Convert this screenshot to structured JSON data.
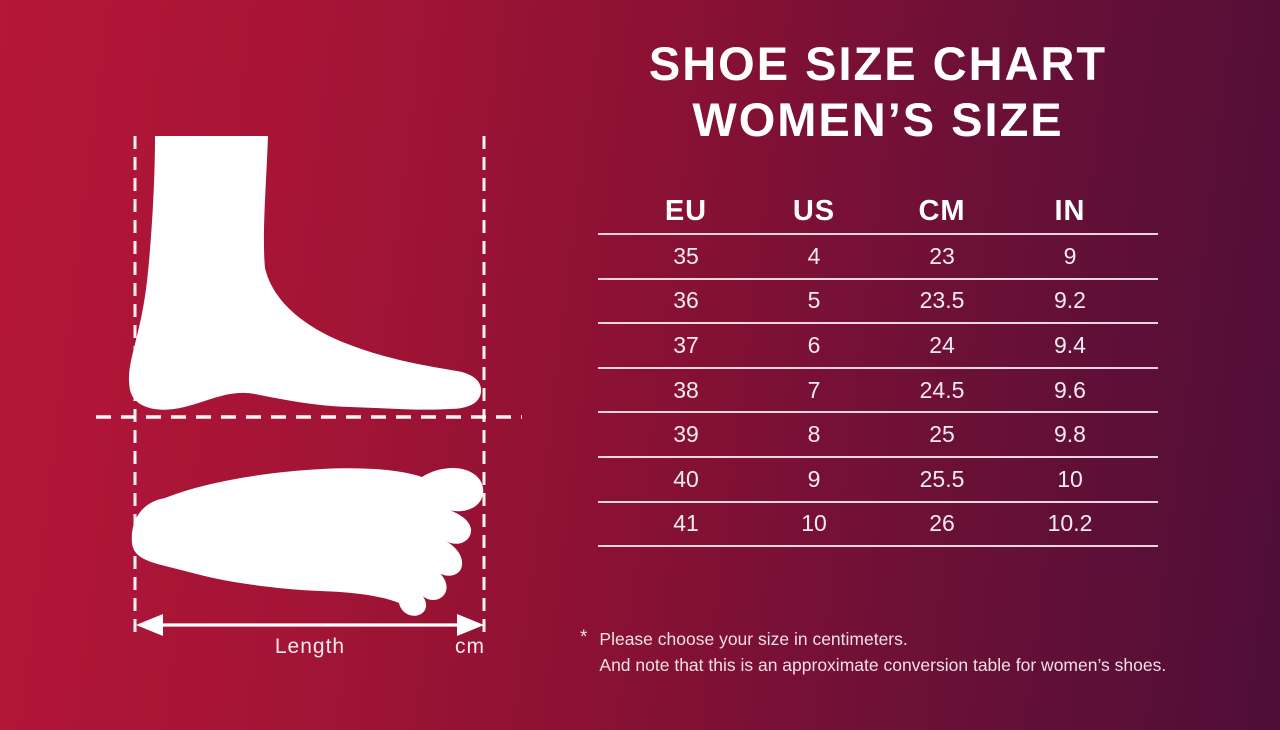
{
  "title": {
    "line1": "SHOE SIZE CHART",
    "line2": "WOMEN’S SIZE"
  },
  "size_table": {
    "headers": [
      "EU",
      "US",
      "CM",
      "IN"
    ],
    "rows": [
      [
        "35",
        "4",
        "23",
        "9"
      ],
      [
        "36",
        "5",
        "23.5",
        "9.2"
      ],
      [
        "37",
        "6",
        "24",
        "9.4"
      ],
      [
        "38",
        "7",
        "24.5",
        "9.6"
      ],
      [
        "39",
        "8",
        "25",
        "9.8"
      ],
      [
        "40",
        "9",
        "25.5",
        "10"
      ],
      [
        "41",
        "10",
        "26",
        "10.2"
      ]
    ]
  },
  "footnote": {
    "marker": "*",
    "line1": "Please choose your size in centimeters.",
    "line2": "And note that this is an approximate conversion table for women’s shoes."
  },
  "measurement_diagram": {
    "length_label": "Length",
    "unit_label": "cm",
    "icons": [
      "foot-side-icon",
      "footprint-icon",
      "length-arrow-icon",
      "dashed-guide-lines"
    ]
  },
  "colors": {
    "bg_left": "#b51639",
    "bg_right": "#4e0e37",
    "title_text": "#ffffff",
    "table_text": "#f7ebef",
    "rule": "#f6e6ee"
  },
  "chart_data": {
    "type": "table",
    "title": "SHOE SIZE CHART WOMEN’S SIZE",
    "columns": [
      "EU",
      "US",
      "CM",
      "IN"
    ],
    "rows": [
      [
        35,
        4,
        23,
        9
      ],
      [
        36,
        5,
        23.5,
        9.2
      ],
      [
        37,
        6,
        24,
        9.4
      ],
      [
        38,
        7,
        24.5,
        9.6
      ],
      [
        39,
        8,
        25,
        9.8
      ],
      [
        40,
        9,
        25.5,
        10
      ],
      [
        41,
        10,
        26,
        10.2
      ]
    ],
    "notes": [
      "Please choose your size in centimeters.",
      "And note that this is an approximate conversion table for women’s shoes."
    ]
  }
}
